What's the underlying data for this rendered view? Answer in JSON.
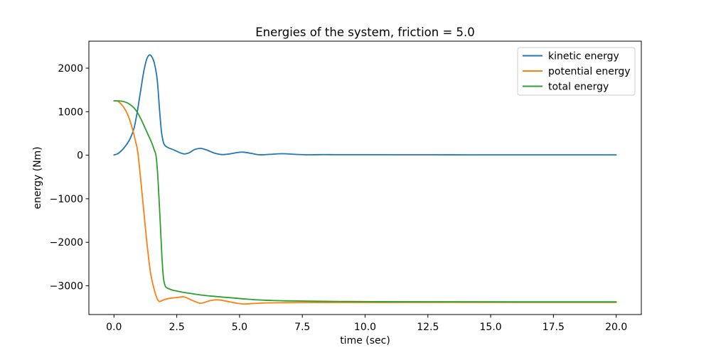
{
  "chart_data": {
    "type": "line",
    "title": "Energies of the system, friction = 5.0",
    "xlabel": "time (sec)",
    "ylabel": "energy (Nm)",
    "xlim": [
      -1,
      21
    ],
    "ylim": [
      -3660,
      2620
    ],
    "grid": false,
    "background": "#ffffff",
    "spine_color": "#000000",
    "xticks": [
      0.0,
      2.5,
      5.0,
      7.5,
      10.0,
      12.5,
      15.0,
      17.5,
      20.0
    ],
    "xtick_labels": [
      "0.0",
      "2.5",
      "5.0",
      "7.5",
      "10.0",
      "12.5",
      "15.0",
      "17.5",
      "20.0"
    ],
    "yticks": [
      2000,
      1000,
      0,
      -1000,
      -2000,
      -3000
    ],
    "ytick_labels": [
      "2000",
      "1000",
      "0",
      "−1000",
      "−2000",
      "−3000"
    ],
    "legend": {
      "position": "upper right",
      "entries": [
        "kinetic energy",
        "potential energy",
        "total energy"
      ]
    },
    "series": [
      {
        "name": "kinetic energy",
        "color": "#1f77b4",
        "points": [
          [
            0,
            5
          ],
          [
            0.15,
            35
          ],
          [
            0.3,
            105
          ],
          [
            0.45,
            205
          ],
          [
            0.6,
            335
          ],
          [
            0.7,
            455
          ],
          [
            0.8,
            625
          ],
          [
            0.9,
            905
          ],
          [
            1,
            1255
          ],
          [
            1.1,
            1625
          ],
          [
            1.2,
            1965
          ],
          [
            1.3,
            2200
          ],
          [
            1.4,
            2300
          ],
          [
            1.5,
            2268
          ],
          [
            1.6,
            2130
          ],
          [
            1.7,
            1830
          ],
          [
            1.75,
            1555
          ],
          [
            1.8,
            1150
          ],
          [
            1.85,
            780
          ],
          [
            1.9,
            500
          ],
          [
            1.95,
            335
          ],
          [
            2,
            248
          ],
          [
            2.1,
            192
          ],
          [
            2.2,
            162
          ],
          [
            2.4,
            118
          ],
          [
            2.6,
            64
          ],
          [
            2.8,
            30
          ],
          [
            3,
            58
          ],
          [
            3.2,
            128
          ],
          [
            3.45,
            157
          ],
          [
            3.7,
            118
          ],
          [
            4,
            50
          ],
          [
            4.3,
            15
          ],
          [
            4.6,
            30
          ],
          [
            4.9,
            60
          ],
          [
            5.15,
            70
          ],
          [
            5.45,
            44
          ],
          [
            5.8,
            10
          ],
          [
            6.2,
            20
          ],
          [
            6.7,
            34
          ],
          [
            7.2,
            20
          ],
          [
            7.7,
            10
          ],
          [
            8.2,
            14
          ],
          [
            9,
            12
          ],
          [
            10,
            11
          ],
          [
            12,
            10
          ],
          [
            14,
            9
          ],
          [
            17,
            8
          ],
          [
            20,
            8
          ]
        ]
      },
      {
        "name": "potential energy",
        "color": "#ff7f0e",
        "points": [
          [
            0,
            1250
          ],
          [
            0.15,
            1242
          ],
          [
            0.3,
            1165
          ],
          [
            0.45,
            1045
          ],
          [
            0.6,
            855
          ],
          [
            0.75,
            575
          ],
          [
            0.85,
            345
          ],
          [
            0.95,
            60
          ],
          [
            1.05,
            -480
          ],
          [
            1.15,
            -1060
          ],
          [
            1.3,
            -1950
          ],
          [
            1.45,
            -2680
          ],
          [
            1.6,
            -3080
          ],
          [
            1.7,
            -3270
          ],
          [
            1.8,
            -3360
          ],
          [
            1.95,
            -3330
          ],
          [
            2.15,
            -3295
          ],
          [
            2.5,
            -3270
          ],
          [
            2.8,
            -3256
          ],
          [
            3.1,
            -3330
          ],
          [
            3.45,
            -3400
          ],
          [
            3.8,
            -3345
          ],
          [
            4.15,
            -3322
          ],
          [
            4.6,
            -3368
          ],
          [
            4.9,
            -3400
          ],
          [
            5.2,
            -3418
          ],
          [
            5.6,
            -3405
          ],
          [
            6.1,
            -3393
          ],
          [
            6.8,
            -3387
          ],
          [
            7.8,
            -3384
          ],
          [
            9,
            -3382
          ],
          [
            11,
            -3382
          ],
          [
            14,
            -3381
          ],
          [
            17,
            -3381
          ],
          [
            20,
            -3381
          ]
        ]
      },
      {
        "name": "total energy",
        "color": "#2ca02c",
        "points": [
          [
            0,
            1250
          ],
          [
            0.2,
            1247
          ],
          [
            0.4,
            1230
          ],
          [
            0.6,
            1180
          ],
          [
            0.8,
            1085
          ],
          [
            0.95,
            965
          ],
          [
            1.1,
            800
          ],
          [
            1.25,
            610
          ],
          [
            1.4,
            420
          ],
          [
            1.5,
            290
          ],
          [
            1.6,
            130
          ],
          [
            1.67,
            0
          ],
          [
            1.73,
            -350
          ],
          [
            1.79,
            -950
          ],
          [
            1.85,
            -1650
          ],
          [
            1.91,
            -2350
          ],
          [
            1.97,
            -2820
          ],
          [
            2.04,
            -3005
          ],
          [
            2.15,
            -3060
          ],
          [
            2.35,
            -3100
          ],
          [
            2.6,
            -3132
          ],
          [
            2.9,
            -3162
          ],
          [
            3.45,
            -3212
          ],
          [
            4.15,
            -3250
          ],
          [
            4.8,
            -3282
          ],
          [
            5.3,
            -3307
          ],
          [
            6,
            -3330
          ],
          [
            6.8,
            -3345
          ],
          [
            7.8,
            -3354
          ],
          [
            9,
            -3360
          ],
          [
            10.5,
            -3364
          ],
          [
            13,
            -3367
          ],
          [
            16,
            -3369
          ],
          [
            20,
            -3370
          ]
        ]
      }
    ]
  }
}
